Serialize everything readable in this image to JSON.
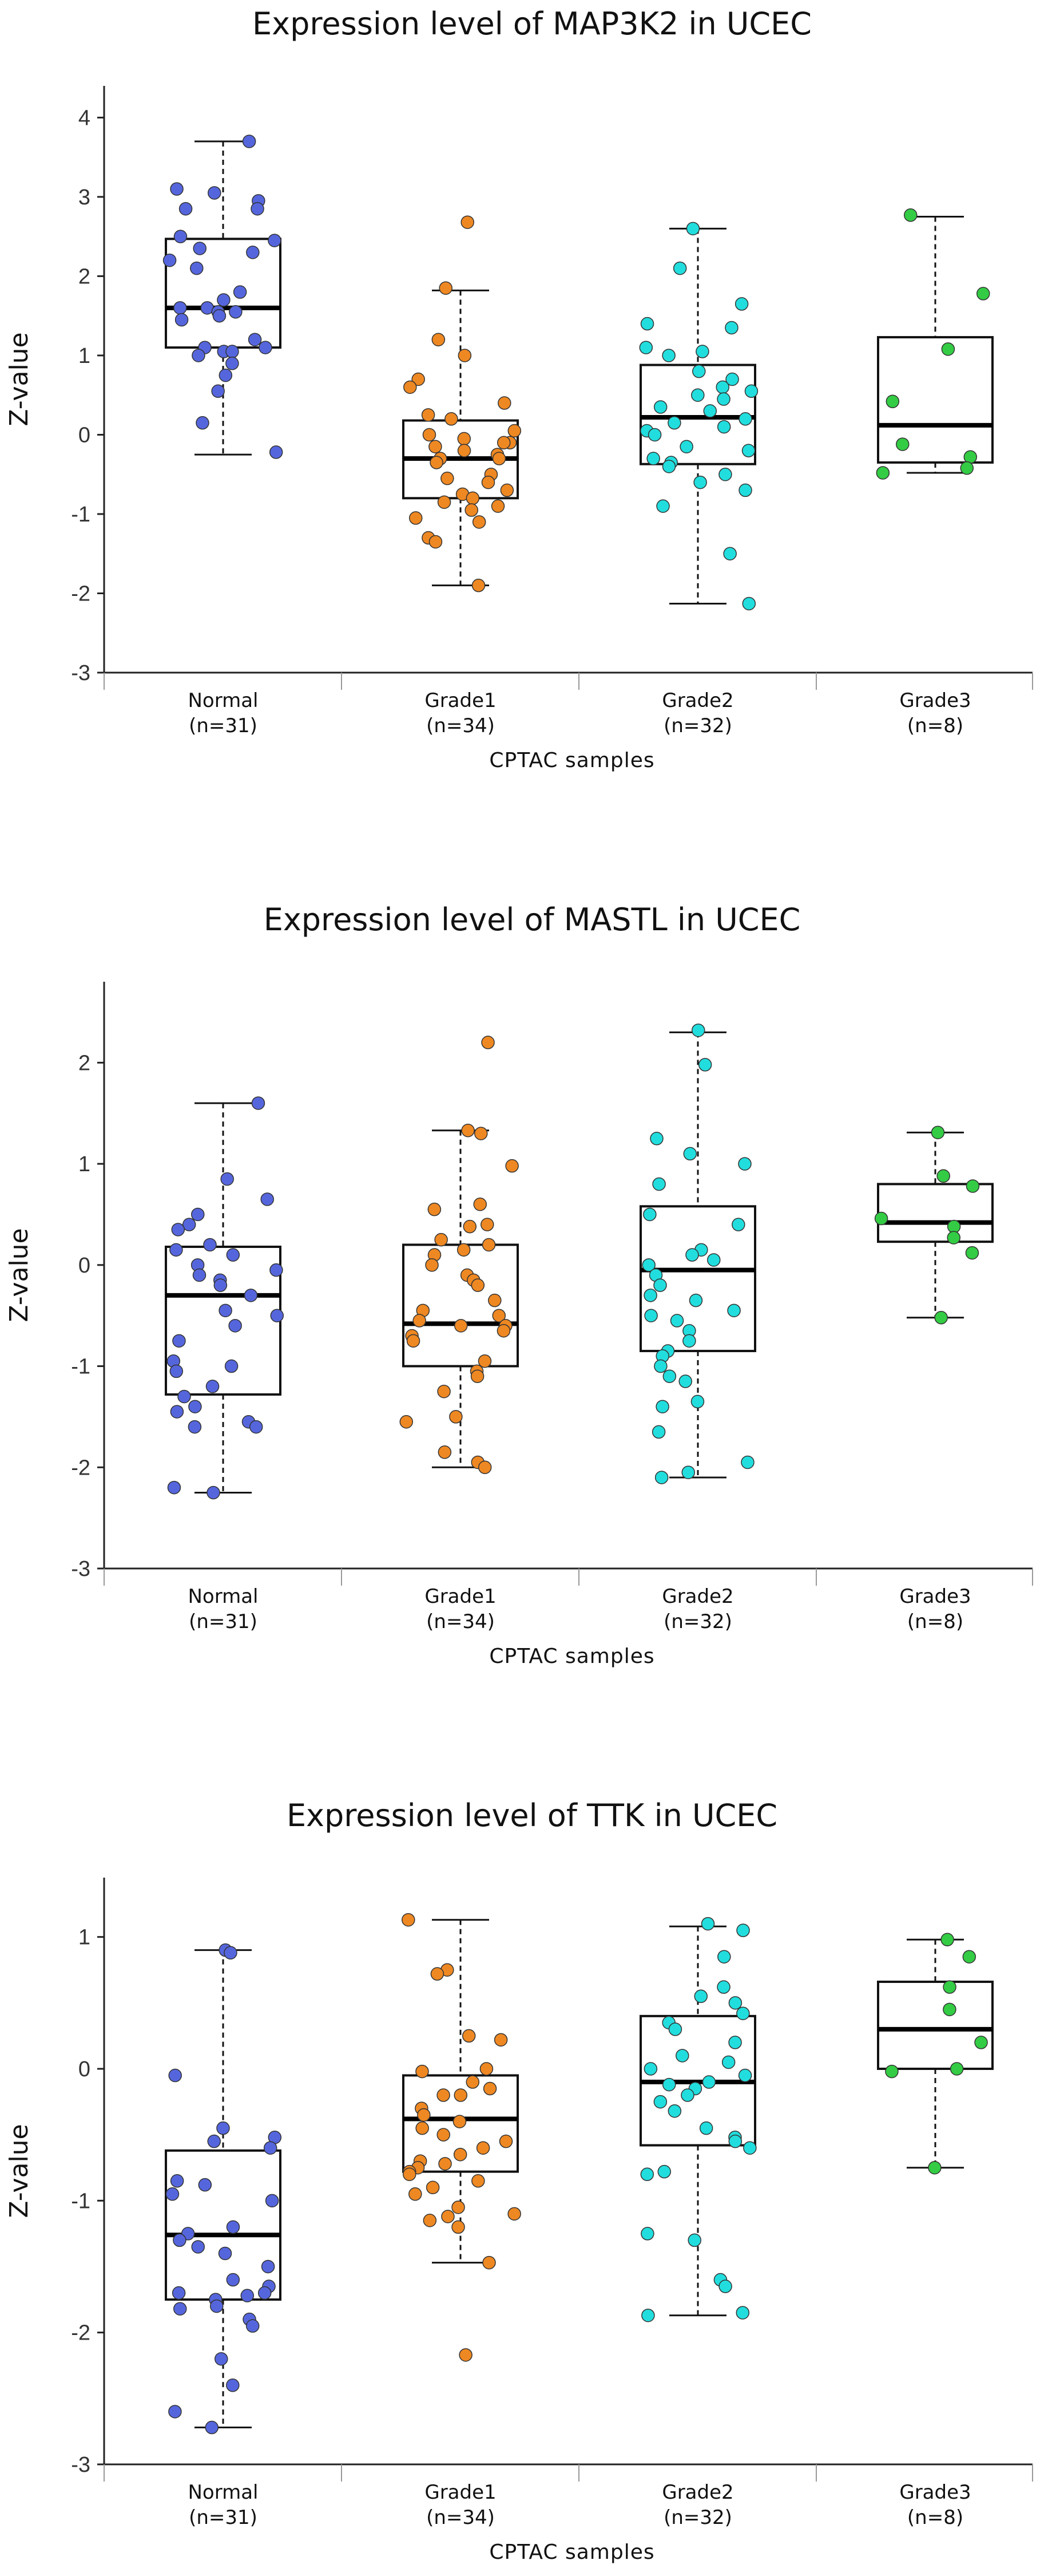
{
  "chart_data": [
    {
      "type": "box",
      "title": "Expression level of MAP3K2 in UCEC",
      "ylabel": "Z-value",
      "xlabel": "CPTAC samples",
      "ylim": [
        -3,
        4.4
      ],
      "yticks": [
        -3,
        -2,
        -1,
        0,
        1,
        2,
        3,
        4
      ],
      "groups": [
        {
          "name": "Normal",
          "n_label": "(n=31)",
          "color": "#5566dd",
          "min": -0.25,
          "q1": 1.1,
          "median": 1.6,
          "q3": 2.47,
          "max": 3.7,
          "points": [
            3.7,
            3.1,
            3.05,
            2.95,
            2.85,
            2.85,
            2.5,
            2.45,
            2.35,
            2.3,
            2.2,
            2.1,
            1.8,
            1.7,
            1.6,
            1.6,
            1.55,
            1.55,
            1.5,
            1.45,
            1.2,
            1.1,
            1.1,
            1.05,
            1.05,
            1.0,
            0.9,
            0.75,
            0.55,
            0.15,
            -0.22
          ]
        },
        {
          "name": "Grade1",
          "n_label": "(n=34)",
          "color": "#ee8822",
          "min": -1.9,
          "q1": -0.8,
          "median": -0.3,
          "q3": 0.18,
          "max": 1.82,
          "points": [
            2.68,
            1.85,
            1.2,
            1.0,
            0.7,
            0.6,
            0.4,
            0.25,
            0.2,
            0.05,
            0.0,
            -0.05,
            -0.1,
            -0.1,
            -0.15,
            -0.2,
            -0.25,
            -0.3,
            -0.3,
            -0.35,
            -0.5,
            -0.55,
            -0.6,
            -0.7,
            -0.75,
            -0.8,
            -0.85,
            -0.9,
            -0.95,
            -1.05,
            -1.1,
            -1.3,
            -1.35,
            -1.9
          ]
        },
        {
          "name": "Grade2",
          "n_label": "(n=32)",
          "color": "#22dddd",
          "min": -2.13,
          "q1": -0.37,
          "median": 0.22,
          "q3": 0.88,
          "max": 2.6,
          "points": [
            2.6,
            2.1,
            1.65,
            1.4,
            1.35,
            1.1,
            1.05,
            1.0,
            0.8,
            0.7,
            0.6,
            0.55,
            0.5,
            0.45,
            0.35,
            0.3,
            0.2,
            0.15,
            0.1,
            0.05,
            0.0,
            -0.15,
            -0.2,
            -0.3,
            -0.35,
            -0.4,
            -0.5,
            -0.6,
            -0.7,
            -0.9,
            -1.5,
            -2.13
          ]
        },
        {
          "name": "Grade3",
          "n_label": "(n=8)",
          "color": "#33cc44",
          "min": -0.48,
          "q1": -0.35,
          "median": 0.12,
          "q3": 1.23,
          "max": 2.75,
          "points": [
            2.77,
            1.78,
            1.08,
            0.42,
            -0.12,
            -0.28,
            -0.42,
            -0.48
          ]
        }
      ]
    },
    {
      "type": "box",
      "title": "Expression level of MASTL in UCEC",
      "ylabel": "Z-value",
      "xlabel": "CPTAC samples",
      "ylim": [
        -3,
        2.8
      ],
      "yticks": [
        -3,
        -2,
        -1,
        0,
        1,
        2
      ],
      "groups": [
        {
          "name": "Normal",
          "n_label": "(n=31)",
          "color": "#5566dd",
          "min": -2.25,
          "q1": -1.28,
          "median": -0.3,
          "q3": 0.18,
          "max": 1.6,
          "points": [
            1.6,
            0.85,
            0.65,
            0.5,
            0.4,
            0.35,
            0.2,
            0.15,
            0.1,
            0.0,
            -0.05,
            -0.1,
            -0.15,
            -0.2,
            -0.3,
            -0.45,
            -0.5,
            -0.6,
            -0.75,
            -0.95,
            -1.0,
            -1.05,
            -1.2,
            -1.3,
            -1.4,
            -1.45,
            -1.55,
            -1.6,
            -1.6,
            -2.2,
            -2.25
          ]
        },
        {
          "name": "Grade1",
          "n_label": "(n=34)",
          "color": "#ee8822",
          "min": -2.0,
          "q1": -1.0,
          "median": -0.58,
          "q3": 0.2,
          "max": 1.33,
          "points": [
            2.2,
            1.33,
            1.3,
            0.98,
            0.6,
            0.55,
            0.4,
            0.38,
            0.25,
            0.2,
            0.15,
            0.1,
            0.0,
            -0.1,
            -0.15,
            -0.2,
            -0.35,
            -0.45,
            -0.5,
            -0.55,
            -0.6,
            -0.6,
            -0.65,
            -0.7,
            -0.75,
            -0.95,
            -1.05,
            -1.1,
            -1.25,
            -1.5,
            -1.55,
            -1.85,
            -1.95,
            -2.0
          ]
        },
        {
          "name": "Grade2",
          "n_label": "(n=32)",
          "color": "#22dddd",
          "min": -2.1,
          "q1": -0.85,
          "median": -0.05,
          "q3": 0.58,
          "max": 2.3,
          "points": [
            2.32,
            1.98,
            1.25,
            1.1,
            1.0,
            0.8,
            0.5,
            0.4,
            0.15,
            0.1,
            0.05,
            0.0,
            -0.1,
            -0.2,
            -0.3,
            -0.35,
            -0.45,
            -0.5,
            -0.55,
            -0.65,
            -0.75,
            -0.85,
            -0.9,
            -1.0,
            -1.1,
            -1.15,
            -1.35,
            -1.4,
            -1.65,
            -1.95,
            -2.05,
            -2.1
          ]
        },
        {
          "name": "Grade3",
          "n_label": "(n=8)",
          "color": "#33cc44",
          "min": -0.52,
          "q1": 0.23,
          "median": 0.42,
          "q3": 0.8,
          "max": 1.31,
          "points": [
            1.31,
            0.88,
            0.78,
            0.46,
            0.38,
            0.27,
            0.12,
            -0.52
          ]
        }
      ]
    },
    {
      "type": "box",
      "title": "Expression level of TTK in UCEC",
      "ylabel": "Z-value",
      "xlabel": "CPTAC samples",
      "ylim": [
        -3,
        1.45
      ],
      "yticks": [
        -3,
        -2,
        -1,
        0,
        1
      ],
      "groups": [
        {
          "name": "Normal",
          "n_label": "(n=31)",
          "color": "#5566dd",
          "min": -2.72,
          "q1": -1.75,
          "median": -1.26,
          "q3": -0.62,
          "max": 0.9,
          "points": [
            0.9,
            0.88,
            -0.05,
            -0.45,
            -0.52,
            -0.55,
            -0.6,
            -0.85,
            -0.88,
            -0.95,
            -1.2,
            -1.25,
            -1.3,
            -1.35,
            -1.4,
            -1.5,
            -1.6,
            -1.65,
            -1.7,
            -1.7,
            -1.72,
            -1.75,
            -1.8,
            -1.82,
            -1.9,
            -1.95,
            -2.2,
            -2.4,
            -2.6,
            -2.72,
            -1.0
          ]
        },
        {
          "name": "Grade1",
          "n_label": "(n=34)",
          "color": "#ee8822",
          "min": -1.47,
          "q1": -0.78,
          "median": -0.38,
          "q3": -0.05,
          "max": 1.13,
          "points": [
            1.13,
            0.75,
            0.72,
            0.25,
            0.22,
            0.0,
            -0.02,
            -0.1,
            -0.15,
            -0.2,
            -0.2,
            -0.3,
            -0.35,
            -0.4,
            -0.45,
            -0.5,
            -0.55,
            -0.6,
            -0.65,
            -0.7,
            -0.72,
            -0.75,
            -0.78,
            -0.8,
            -0.85,
            -0.9,
            -0.95,
            -1.05,
            -1.1,
            -1.12,
            -1.15,
            -1.2,
            -1.47,
            -2.17
          ]
        },
        {
          "name": "Grade2",
          "n_label": "(n=32)",
          "color": "#22dddd",
          "min": -1.87,
          "q1": -0.58,
          "median": -0.1,
          "q3": 0.4,
          "max": 1.08,
          "points": [
            1.1,
            1.05,
            0.85,
            0.62,
            0.55,
            0.5,
            0.42,
            0.35,
            0.3,
            0.2,
            0.1,
            0.05,
            0.0,
            -0.05,
            -0.1,
            -0.12,
            -0.15,
            -0.2,
            -0.25,
            -0.32,
            -0.45,
            -0.52,
            -0.55,
            -0.6,
            -0.78,
            -0.8,
            -1.25,
            -1.3,
            -1.6,
            -1.65,
            -1.85,
            -1.87
          ]
        },
        {
          "name": "Grade3",
          "n_label": "(n=8)",
          "color": "#33cc44",
          "min": -0.75,
          "q1": 0.0,
          "median": 0.3,
          "q3": 0.66,
          "max": 0.98,
          "points": [
            0.98,
            0.85,
            0.62,
            0.45,
            0.2,
            0.0,
            -0.02,
            -0.75
          ]
        }
      ]
    }
  ]
}
